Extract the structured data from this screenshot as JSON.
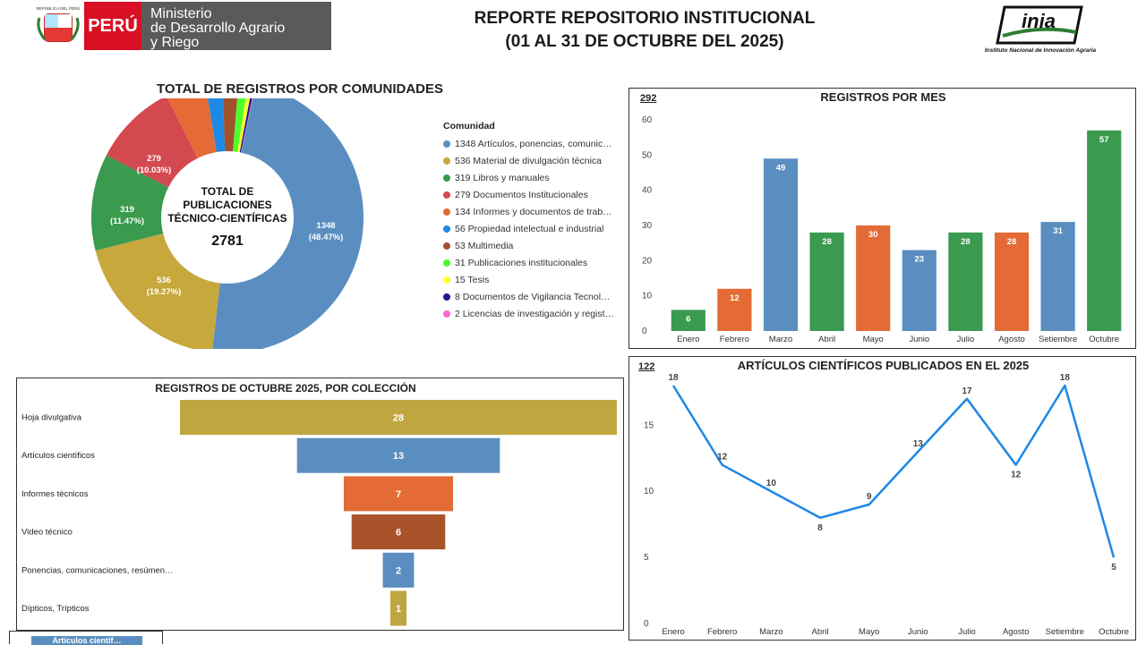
{
  "header": {
    "country": "PERÚ",
    "ministry_lines": [
      "Ministerio",
      "de Desarrollo Agrario",
      "y Riego"
    ],
    "title_line1": "REPORTE REPOSITORIO INSTITUCIONAL",
    "title_line2": "(01 AL 31 DE OCTUBRE DEL 2025)",
    "inia_brand": "inia",
    "inia_full": "Instituto Nacional de Innovación Agraria",
    "emblem_caption": "REPÚBLICA DEL PERÚ"
  },
  "colors": {
    "blue": "#5b8ec0",
    "olive": "#c6a83c",
    "green": "#3a9a4e",
    "crimson": "#d4484f",
    "orange": "#e46b35",
    "brightblue": "#1e88e5",
    "brown": "#a0522d",
    "lime": "#4cff2b",
    "yellow": "#ffff33",
    "navy": "#1b1b8f",
    "pink": "#ff66cc",
    "linechart": "#1e88e5"
  },
  "donut": {
    "title": "TOTAL DE REGISTROS POR COMUNIDADES",
    "center_lines": [
      "TOTAL DE",
      "PUBLICACIONES",
      "TÉCNICO-CIENTÍFICAS"
    ],
    "center_total": "2781",
    "legend_title": "Comunidad",
    "legend": [
      "1348 Artículos, ponencias, comunic…",
      "536 Material de divulgación técnica",
      "319 Libros y manuales",
      "279 Documentos Institucionales",
      "134 Informes y documentos de trab…",
      "56 Propiedad intelectual e industrial",
      "53 Multimedia",
      "31 Publicaciones institucionales",
      "15 Tesis",
      "8 Documentos de Vigilancia Tecnol…",
      "2 Licencias de investigación y regist…"
    ],
    "slice_labels": [
      {
        "value": "1348",
        "pct": "(48.47%)"
      },
      {
        "value": "536",
        "pct": "(19.27%)"
      },
      {
        "value": "319",
        "pct": "(11.47%)"
      },
      {
        "value": "279",
        "pct": "(10.03%)"
      }
    ]
  },
  "bar_panel": {
    "title": "REGISTROS POR MES",
    "card_value": "292"
  },
  "funnel_panel": {
    "title": "REGISTROS DE OCTUBRE 2025, POR COLECCIÓN",
    "bottom_tab": "Artículos científ…"
  },
  "line_panel": {
    "title": "ARTÍCULOS CIENTÍFICOS PUBLICADOS EN EL 2025",
    "card_value": "122"
  },
  "chart_data": [
    {
      "type": "pie",
      "title": "TOTAL DE REGISTROS POR COMUNIDADES",
      "categories": [
        "Artículos, ponencias, comunic…",
        "Material de divulgación técnica",
        "Libros y manuales",
        "Documentos Institucionales",
        "Informes y documentos de trab…",
        "Propiedad intelectual e industrial",
        "Multimedia",
        "Publicaciones institucionales",
        "Tesis",
        "Documentos de Vigilancia Tecnol…",
        "Licencias de investigación y regist…"
      ],
      "values": [
        1348,
        536,
        319,
        279,
        134,
        56,
        53,
        31,
        15,
        8,
        2
      ],
      "colors": [
        "#5b8ec0",
        "#c6a83c",
        "#3a9a4e",
        "#d4484f",
        "#e46b35",
        "#1e88e5",
        "#a0522d",
        "#4cff2b",
        "#ffff33",
        "#1b1b8f",
        "#ff66cc"
      ],
      "legend": "right"
    },
    {
      "type": "bar",
      "title": "REGISTROS POR MES",
      "categories": [
        "Enero",
        "Febrero",
        "Marzo",
        "Abril",
        "Mayo",
        "Junio",
        "Julio",
        "Agosto",
        "Setiembre",
        "Octubre"
      ],
      "values": [
        6,
        12,
        49,
        28,
        30,
        23,
        28,
        28,
        31,
        57
      ],
      "colors": [
        "#3a9a4e",
        "#e46b35",
        "#5b8ec0",
        "#3a9a4e",
        "#e46b35",
        "#5b8ec0",
        "#3a9a4e",
        "#e46b35",
        "#5b8ec0",
        "#3a9a4e"
      ],
      "ylim": [
        0,
        60
      ],
      "yticks": [
        0,
        10,
        20,
        30,
        40,
        50,
        60
      ],
      "grid": false
    },
    {
      "type": "bar",
      "orientation": "horizontal-funnel",
      "title": "REGISTROS DE OCTUBRE 2025, POR COLECCIÓN",
      "categories": [
        "Hoja divulgativa",
        "Artículos científicos",
        "Informes técnicos",
        "Video técnico",
        "Ponencias, comunicaciones, resúmen…",
        "Dípticos, Trípticos"
      ],
      "values": [
        28,
        13,
        7,
        6,
        2,
        1
      ],
      "colors": [
        "#bfa63e",
        "#5b8ec0",
        "#e46b35",
        "#a9532a",
        "#5b8ec0",
        "#bfa63e"
      ]
    },
    {
      "type": "line",
      "title": "ARTÍCULOS CIENTÍFICOS PUBLICADOS EN EL 2025",
      "categories": [
        "Enero",
        "Febrero",
        "Marzo",
        "Abril",
        "Mayo",
        "Junio",
        "Julio",
        "Agosto",
        "Setiembre",
        "Octubre"
      ],
      "values": [
        18,
        12,
        10,
        8,
        9,
        13,
        17,
        12,
        18,
        5
      ],
      "ylim": [
        0,
        18
      ],
      "yticks": [
        0,
        5,
        10,
        15
      ],
      "grid": false
    }
  ]
}
